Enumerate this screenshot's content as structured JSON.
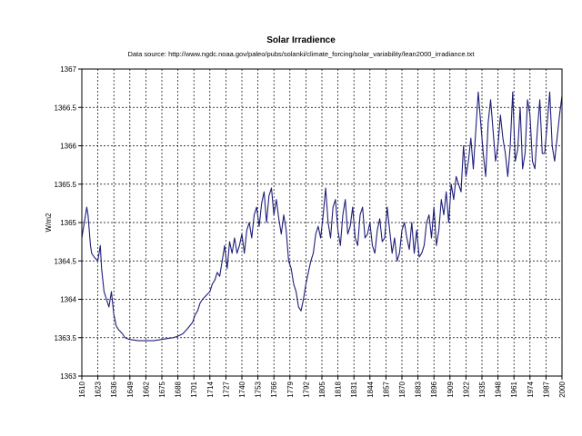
{
  "chart_data": {
    "type": "line",
    "title": "Solar Irradience",
    "subtitle": "Data source: http://www.ngdc.noaa.gov/paleo/pubs/solanki/climate_forcing/solar_variability/lean2000_irradiance.txt",
    "ylabel": "W/m2",
    "xlabel": "",
    "ylim": [
      1363,
      1367
    ],
    "xlim": [
      1610,
      2000
    ],
    "grid": true,
    "y_ticks": [
      "1363",
      "1363.5",
      "1364",
      "1364.5",
      "1365",
      "1365.5",
      "1366",
      "1366.5",
      "1367"
    ],
    "x_ticks": [
      "1610",
      "1623",
      "1636",
      "1649",
      "1662",
      "1675",
      "1688",
      "1701",
      "1714",
      "1727",
      "1740",
      "1753",
      "1766",
      "1779",
      "1792",
      "1805",
      "1818",
      "1831",
      "1844",
      "1857",
      "1870",
      "1883",
      "1896",
      "1909",
      "1922",
      "1935",
      "1948",
      "1961",
      "1974",
      "1987",
      "2000"
    ],
    "series": [
      {
        "color": "#1f1f7a",
        "x": [
          1610,
          1612,
          1614,
          1615,
          1617,
          1618,
          1620,
          1623,
          1625,
          1626,
          1628,
          1630,
          1632,
          1634,
          1636,
          1638,
          1640,
          1643,
          1645,
          1648,
          1652,
          1656,
          1660,
          1664,
          1668,
          1672,
          1676,
          1680,
          1684,
          1688,
          1692,
          1696,
          1700,
          1702,
          1704,
          1706,
          1708,
          1711,
          1714,
          1716,
          1718,
          1720,
          1722,
          1724,
          1726,
          1728,
          1730,
          1732,
          1734,
          1736,
          1738,
          1740,
          1742,
          1744,
          1746,
          1748,
          1750,
          1752,
          1754,
          1756,
          1758,
          1760,
          1762,
          1764,
          1766,
          1768,
          1770,
          1772,
          1774,
          1776,
          1778,
          1780,
          1782,
          1784,
          1786,
          1788,
          1790,
          1792,
          1794,
          1796,
          1798,
          1800,
          1802,
          1804,
          1806,
          1808,
          1810,
          1812,
          1814,
          1816,
          1818,
          1820,
          1822,
          1824,
          1826,
          1828,
          1830,
          1832,
          1834,
          1836,
          1838,
          1840,
          1842,
          1844,
          1846,
          1848,
          1850,
          1852,
          1854,
          1856,
          1858,
          1860,
          1862,
          1864,
          1866,
          1868,
          1870,
          1872,
          1874,
          1876,
          1878,
          1880,
          1882,
          1884,
          1886,
          1888,
          1890,
          1892,
          1894,
          1896,
          1898,
          1900,
          1902,
          1904,
          1906,
          1908,
          1910,
          1912,
          1914,
          1916,
          1918,
          1920,
          1922,
          1924,
          1926,
          1928,
          1930,
          1932,
          1934,
          1936,
          1938,
          1940,
          1942,
          1944,
          1946,
          1948,
          1950,
          1952,
          1954,
          1956,
          1958,
          1960,
          1962,
          1964,
          1966,
          1968,
          1970,
          1972,
          1974,
          1976,
          1978,
          1980,
          1982,
          1984,
          1986,
          1988,
          1990,
          1992,
          1994,
          1996,
          1998,
          2000
        ],
        "y": [
          1364.8,
          1365.0,
          1365.2,
          1365.1,
          1364.7,
          1364.6,
          1364.55,
          1364.5,
          1364.7,
          1364.4,
          1364.1,
          1364.0,
          1363.9,
          1364.1,
          1363.8,
          1363.65,
          1363.6,
          1363.55,
          1363.5,
          1363.48,
          1363.47,
          1363.46,
          1363.46,
          1363.46,
          1363.46,
          1363.47,
          1363.48,
          1363.49,
          1363.5,
          1363.52,
          1363.55,
          1363.62,
          1363.7,
          1363.8,
          1363.85,
          1363.95,
          1364.0,
          1364.05,
          1364.1,
          1364.2,
          1364.25,
          1364.35,
          1364.3,
          1364.5,
          1364.7,
          1364.4,
          1364.75,
          1364.6,
          1364.8,
          1364.6,
          1364.7,
          1364.85,
          1364.6,
          1364.9,
          1365.0,
          1364.8,
          1365.1,
          1365.2,
          1364.95,
          1365.25,
          1365.4,
          1365.0,
          1365.35,
          1365.45,
          1365.1,
          1365.3,
          1365.05,
          1364.85,
          1365.1,
          1364.9,
          1364.5,
          1364.4,
          1364.2,
          1364.1,
          1363.9,
          1363.85,
          1364.0,
          1364.2,
          1364.35,
          1364.5,
          1364.6,
          1364.85,
          1364.95,
          1364.8,
          1365.1,
          1365.45,
          1365.0,
          1364.8,
          1365.2,
          1365.3,
          1364.9,
          1364.7,
          1365.1,
          1365.3,
          1364.85,
          1364.95,
          1365.2,
          1364.8,
          1364.7,
          1365.1,
          1365.2,
          1364.8,
          1364.85,
          1365.0,
          1364.7,
          1364.6,
          1364.9,
          1365.05,
          1364.75,
          1364.8,
          1365.2,
          1364.9,
          1364.6,
          1364.8,
          1364.5,
          1364.6,
          1364.9,
          1365.0,
          1364.8,
          1364.65,
          1365.0,
          1364.6,
          1364.9,
          1364.55,
          1364.6,
          1364.7,
          1365.0,
          1365.1,
          1364.8,
          1365.2,
          1364.7,
          1364.9,
          1365.3,
          1365.1,
          1365.4,
          1365.0,
          1365.5,
          1365.3,
          1365.6,
          1365.5,
          1365.4,
          1366.0,
          1365.6,
          1365.8,
          1366.1,
          1365.7,
          1366.2,
          1366.7,
          1366.3,
          1365.9,
          1365.6,
          1366.3,
          1366.6,
          1366.2,
          1365.8,
          1366.0,
          1366.4,
          1366.1,
          1365.9,
          1365.6,
          1366.0,
          1366.7,
          1365.8,
          1365.95,
          1366.5,
          1365.7,
          1365.9,
          1366.6,
          1366.4,
          1365.8,
          1365.7,
          1366.2,
          1366.6,
          1365.9,
          1365.9,
          1366.3,
          1366.7,
          1366.0,
          1365.8,
          1366.1,
          1366.4,
          1366.65
        ]
      }
    ]
  }
}
